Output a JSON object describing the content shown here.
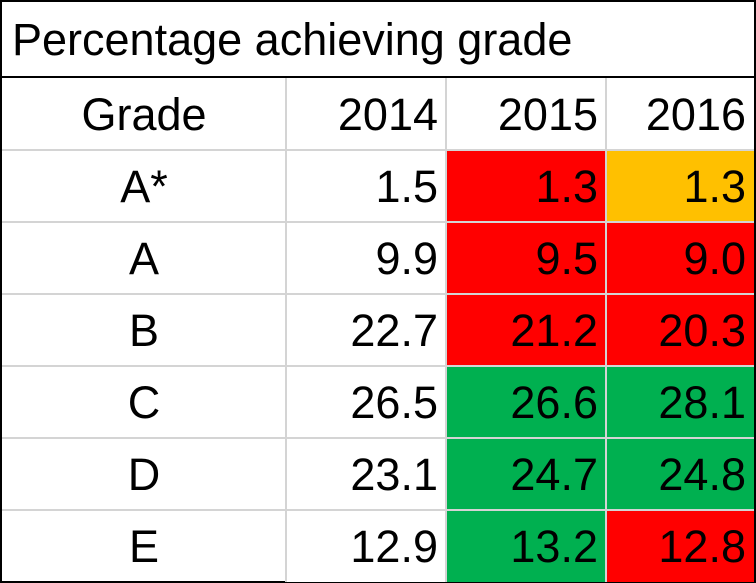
{
  "chart_data": {
    "type": "table",
    "title": "Percentage achieving grade",
    "columns": [
      "Grade",
      "2014",
      "2015",
      "2016"
    ],
    "rows": [
      {
        "grade": "A*",
        "values": [
          "1.5",
          "1.3",
          "1.3"
        ],
        "fills": [
          "#ffffff",
          "#ff0000",
          "#ffc000"
        ]
      },
      {
        "grade": "A",
        "values": [
          "9.9",
          "9.5",
          "9.0"
        ],
        "fills": [
          "#ffffff",
          "#ff0000",
          "#ff0000"
        ]
      },
      {
        "grade": "B",
        "values": [
          "22.7",
          "21.2",
          "20.3"
        ],
        "fills": [
          "#ffffff",
          "#ff0000",
          "#ff0000"
        ]
      },
      {
        "grade": "C",
        "values": [
          "26.5",
          "26.6",
          "28.1"
        ],
        "fills": [
          "#ffffff",
          "#00b050",
          "#00b050"
        ]
      },
      {
        "grade": "D",
        "values": [
          "23.1",
          "24.7",
          "24.8"
        ],
        "fills": [
          "#ffffff",
          "#00b050",
          "#00b050"
        ]
      },
      {
        "grade": "E",
        "values": [
          "12.9",
          "13.2",
          "12.8"
        ],
        "fills": [
          "#ffffff",
          "#00b050",
          "#ff0000"
        ]
      }
    ]
  }
}
